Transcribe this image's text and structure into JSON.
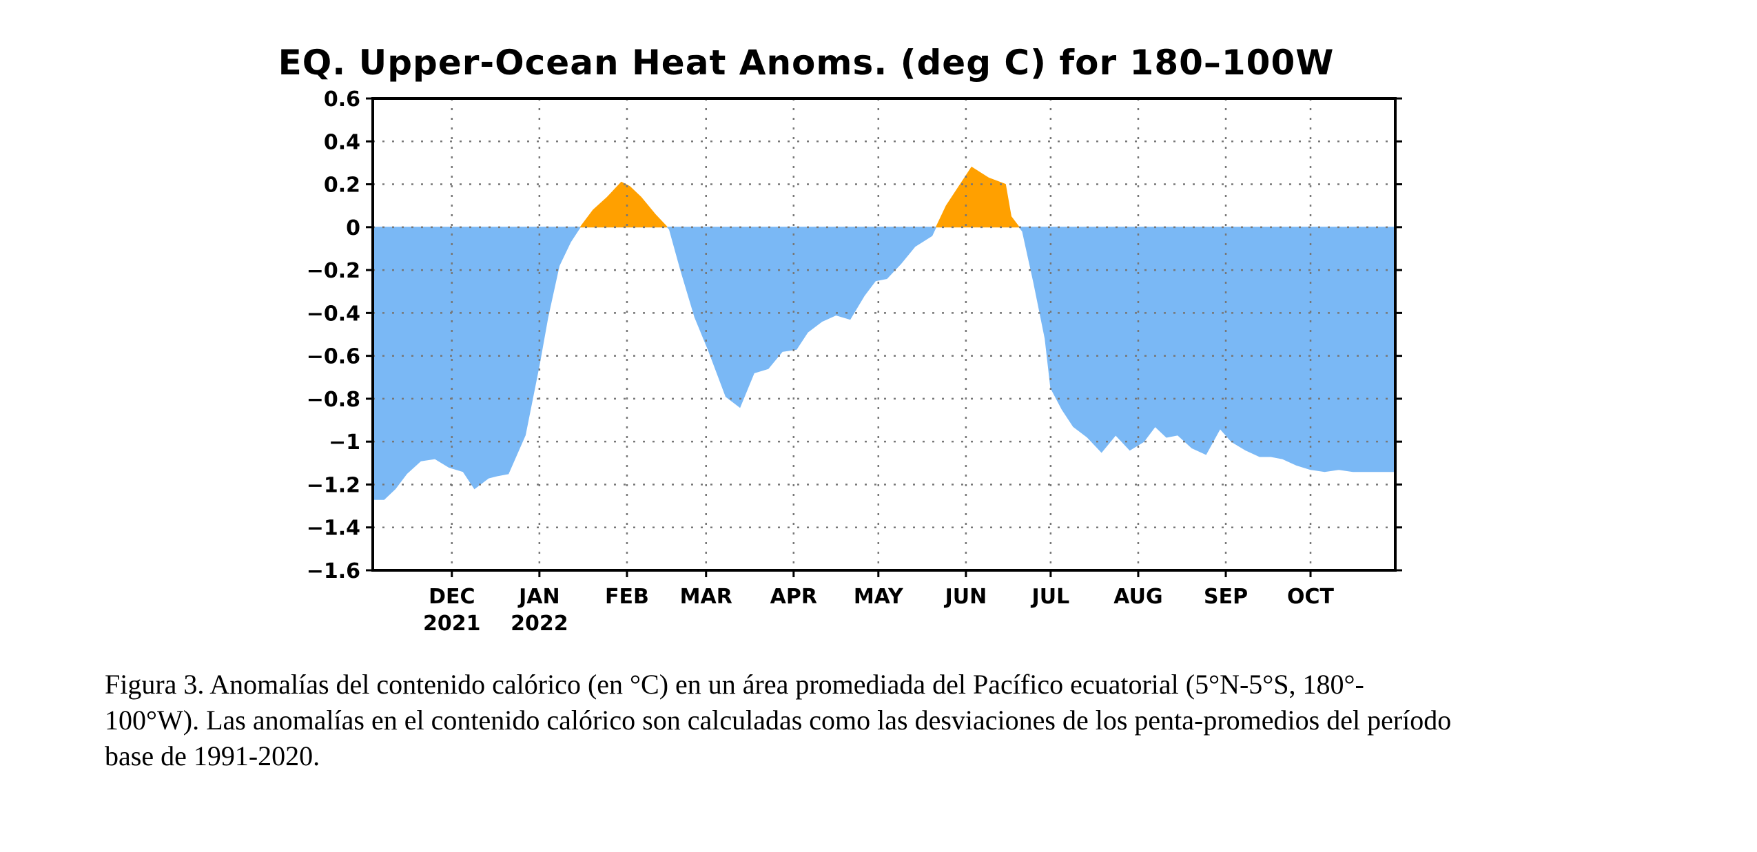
{
  "chart_data": {
    "type": "area",
    "title": "EQ. Upper-Ocean Heat Anoms. (deg C) for 180–100W",
    "ylim": [
      -1.6,
      0.6
    ],
    "yticks": [
      0.6,
      0.4,
      0.2,
      0,
      -0.2,
      -0.4,
      -0.6,
      -0.8,
      -1,
      -1.2,
      -1.4,
      -1.6
    ],
    "ytick_labels": [
      "0.6",
      "0.4",
      "0.2",
      "0",
      "−0.2",
      "−0.4",
      "−0.6",
      "−0.8",
      "−1",
      "−1.2",
      "−1.4",
      "−1.6"
    ],
    "xlim": [
      "2021-11-03",
      "2022-10-31"
    ],
    "xticks": [
      {
        "date": "2021-12-01",
        "label": "DEC",
        "year": "2021"
      },
      {
        "date": "2022-01-01",
        "label": "JAN",
        "year": "2022"
      },
      {
        "date": "2022-02-01",
        "label": "FEB",
        "year": ""
      },
      {
        "date": "2022-03-01",
        "label": "MAR",
        "year": ""
      },
      {
        "date": "2022-04-01",
        "label": "APR",
        "year": ""
      },
      {
        "date": "2022-05-01",
        "label": "MAY",
        "year": ""
      },
      {
        "date": "2022-06-01",
        "label": "JUN",
        "year": ""
      },
      {
        "date": "2022-07-01",
        "label": "JUL",
        "year": ""
      },
      {
        "date": "2022-08-01",
        "label": "AUG",
        "year": ""
      },
      {
        "date": "2022-09-01",
        "label": "SEP",
        "year": ""
      },
      {
        "date": "2022-10-01",
        "label": "OCT",
        "year": ""
      }
    ],
    "grid": true,
    "positive_color": "#ffa000",
    "negative_color": "#7ab8f5",
    "series": [
      {
        "x": [
          "2021-11-03",
          "2021-11-07",
          "2021-11-11",
          "2021-11-15",
          "2021-11-20",
          "2021-11-25",
          "2021-11-30",
          "2021-12-05",
          "2021-12-09",
          "2021-12-14",
          "2021-12-17",
          "2021-12-21",
          "2021-12-27",
          "2022-01-01",
          "2022-01-04",
          "2022-01-08",
          "2022-01-12",
          "2022-01-16",
          "2022-01-20",
          "2022-01-25",
          "2022-01-30",
          "2022-02-02",
          "2022-02-06",
          "2022-02-11",
          "2022-02-16",
          "2022-02-20",
          "2022-02-25",
          "2022-03-02",
          "2022-03-08",
          "2022-03-13",
          "2022-03-18",
          "2022-03-23",
          "2022-03-28",
          "2022-04-02",
          "2022-04-06",
          "2022-04-11",
          "2022-04-16",
          "2022-04-21",
          "2022-04-26",
          "2022-04-30",
          "2022-05-04",
          "2022-05-09",
          "2022-05-14",
          "2022-05-20",
          "2022-05-25",
          "2022-05-30",
          "2022-06-03",
          "2022-06-09",
          "2022-06-15",
          "2022-06-17",
          "2022-06-21",
          "2022-06-25",
          "2022-06-29",
          "2022-07-01",
          "2022-07-05",
          "2022-07-09",
          "2022-07-14",
          "2022-07-19",
          "2022-07-24",
          "2022-07-29",
          "2022-08-03",
          "2022-08-07",
          "2022-08-11",
          "2022-08-15",
          "2022-08-20",
          "2022-08-25",
          "2022-08-30",
          "2022-09-03",
          "2022-09-08",
          "2022-09-13",
          "2022-09-17",
          "2022-09-21",
          "2022-09-26",
          "2022-10-01",
          "2022-10-06",
          "2022-10-11",
          "2022-10-16",
          "2022-10-21",
          "2022-10-26",
          "2022-10-31"
        ],
        "y": [
          -1.27,
          -1.27,
          -1.22,
          -1.15,
          -1.09,
          -1.08,
          -1.12,
          -1.14,
          -1.22,
          -1.17,
          -1.16,
          -1.15,
          -0.97,
          -0.64,
          -0.42,
          -0.18,
          -0.07,
          0.01,
          0.08,
          0.14,
          0.21,
          0.19,
          0.14,
          0.06,
          -0.01,
          -0.2,
          -0.42,
          -0.58,
          -0.79,
          -0.84,
          -0.68,
          -0.66,
          -0.58,
          -0.57,
          -0.49,
          -0.44,
          -0.41,
          -0.43,
          -0.32,
          -0.25,
          -0.24,
          -0.17,
          -0.09,
          -0.04,
          0.1,
          0.2,
          0.28,
          0.23,
          0.2,
          0.05,
          -0.02,
          -0.26,
          -0.52,
          -0.75,
          -0.85,
          -0.93,
          -0.98,
          -1.05,
          -0.97,
          -1.04,
          -1.0,
          -0.93,
          -0.98,
          -0.97,
          -1.03,
          -1.06,
          -0.94,
          -1.0,
          -1.04,
          -1.07,
          -1.07,
          -1.08,
          -1.11,
          -1.13,
          -1.14,
          -1.13,
          -1.14,
          -1.14,
          -1.14,
          -1.14
        ]
      }
    ]
  },
  "caption": {
    "line1": "Figura 3. Anomalías del contenido calórico (en °C) en un área promediada del Pacífico ecuatorial (5°N-5°S, 180°-",
    "line2": "100°W). Las anomalías en el contenido calórico son calculadas como las desviaciones de los penta-promedios del período",
    "line3": "base de 1991-2020."
  }
}
